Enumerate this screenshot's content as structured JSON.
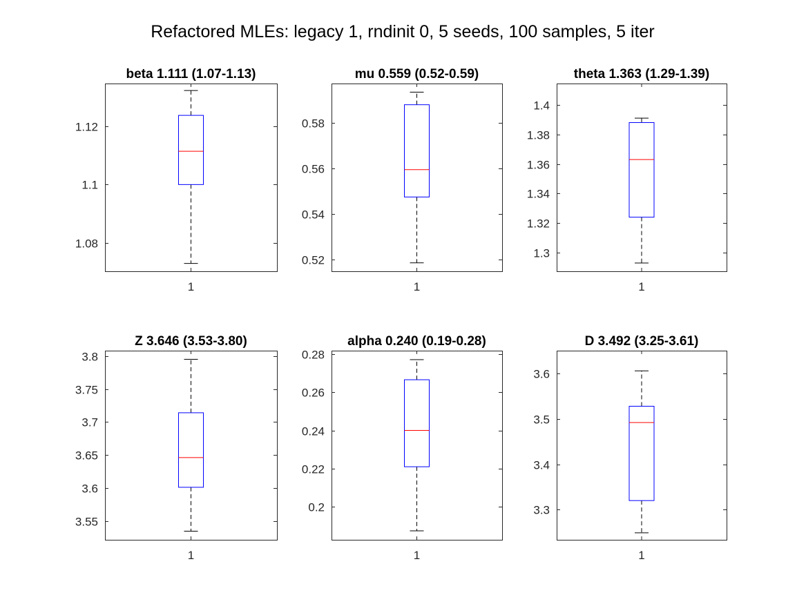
{
  "figure": {
    "title": "Refactored MLEs: legacy 1, rndinit 0, 5 seeds, 100 samples, 5 iter"
  },
  "colors": {
    "box": "#0000ff",
    "median": "#ff0000",
    "whisker": "#000000",
    "axes": "#262626"
  },
  "chart_data": [
    {
      "type": "box",
      "title": "beta 1.111 (1.07-1.13)",
      "categories": [
        "1"
      ],
      "box": {
        "whisker_low": 1.073,
        "q1": 1.1,
        "median": 1.1114,
        "q3": 1.1237,
        "whisker_high": 1.1322
      },
      "ylim": [
        1.0703,
        1.1346
      ],
      "yticks": [
        1.08,
        1.1,
        1.12
      ],
      "ytick_labels": [
        "1.08",
        "1.1",
        "1.12"
      ],
      "grid": false
    },
    {
      "type": "box",
      "title": "mu 0.559 (0.52-0.59)",
      "categories": [
        "1"
      ],
      "box": {
        "whisker_low": 0.5186,
        "q1": 0.5475,
        "median": 0.5595,
        "q3": 0.588,
        "whisker_high": 0.5935
      },
      "ylim": [
        0.5149,
        0.5973
      ],
      "yticks": [
        0.52,
        0.54,
        0.56,
        0.58
      ],
      "ytick_labels": [
        "0.52",
        "0.54",
        "0.56",
        "0.58"
      ],
      "grid": false
    },
    {
      "type": "box",
      "title": "theta 1.363 (1.29-1.39)",
      "categories": [
        "1"
      ],
      "box": {
        "whisker_low": 1.293,
        "q1": 1.324,
        "median": 1.363,
        "q3": 1.388,
        "whisker_high": 1.391
      },
      "ylim": [
        1.2874,
        1.4144
      ],
      "yticks": [
        1.3,
        1.32,
        1.34,
        1.36,
        1.38,
        1.4
      ],
      "ytick_labels": [
        "1.3",
        "1.32",
        "1.34",
        "1.36",
        "1.38",
        "1.4"
      ],
      "grid": false
    },
    {
      "type": "box",
      "title": "Z 3.646 (3.53-3.80)",
      "categories": [
        "1"
      ],
      "box": {
        "whisker_low": 3.5345,
        "q1": 3.601,
        "median": 3.646,
        "q3": 3.714,
        "whisker_high": 3.795
      },
      "ylim": [
        3.5214,
        3.8081
      ],
      "yticks": [
        3.55,
        3.6,
        3.65,
        3.7,
        3.75,
        3.8
      ],
      "ytick_labels": [
        "3.55",
        "3.6",
        "3.65",
        "3.7",
        "3.75",
        "3.8"
      ],
      "grid": false
    },
    {
      "type": "box",
      "title": "alpha 0.240 (0.19-0.28)",
      "categories": [
        "1"
      ],
      "box": {
        "whisker_low": 0.1875,
        "q1": 0.221,
        "median": 0.24,
        "q3": 0.2665,
        "whisker_high": 0.277
      },
      "ylim": [
        0.1828,
        0.2817
      ],
      "yticks": [
        0.2,
        0.22,
        0.24,
        0.26,
        0.28
      ],
      "ytick_labels": [
        "0.2",
        "0.22",
        "0.24",
        "0.26",
        "0.28"
      ],
      "grid": false
    },
    {
      "type": "box",
      "title": "D 3.492 (3.25-3.61)",
      "categories": [
        "1"
      ],
      "box": {
        "whisker_low": 3.249,
        "q1": 3.32,
        "median": 3.492,
        "q3": 3.528,
        "whisker_high": 3.606
      },
      "ylim": [
        3.2335,
        3.6505
      ],
      "yticks": [
        3.3,
        3.4,
        3.5,
        3.6
      ],
      "ytick_labels": [
        "3.3",
        "3.4",
        "3.5",
        "3.6"
      ],
      "grid": false
    }
  ]
}
